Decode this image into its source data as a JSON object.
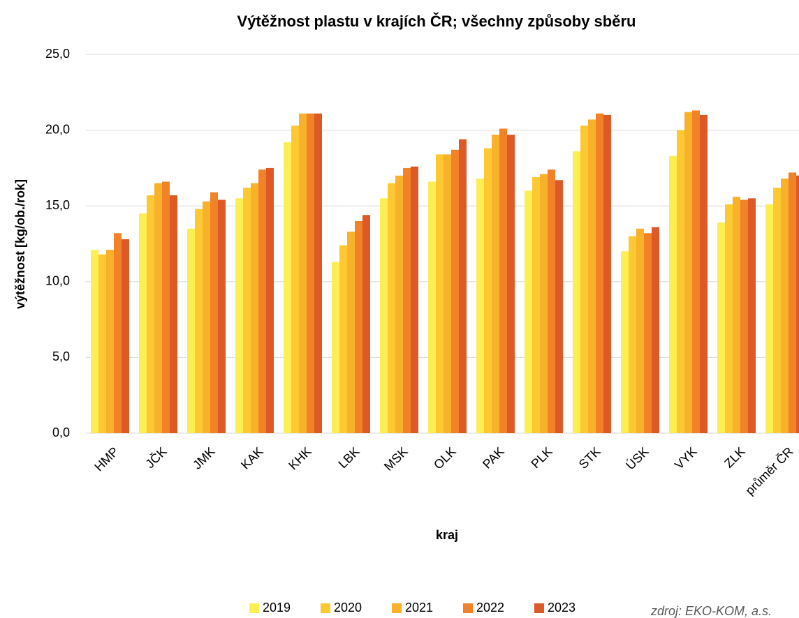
{
  "chart_data": {
    "type": "bar",
    "title": "Výtěžnost plastu v krajích ČR; všechny způsoby sběru",
    "x_label": "kraj",
    "y_label": "výtěžnost [kg/ob./rok]",
    "source": "zdroj: EKO-KOM, a.s.",
    "categories": [
      "HMP",
      "JČK",
      "JMK",
      "KAK",
      "KHK",
      "LBK",
      "MSK",
      "OLK",
      "PAK",
      "PLK",
      "STK",
      "ÚSK",
      "VYK",
      "ZLK",
      "průměr ČR"
    ],
    "series": [
      {
        "name": "2019",
        "color": "#fdee54",
        "values": [
          12.1,
          14.5,
          13.5,
          15.5,
          19.2,
          11.3,
          15.5,
          16.6,
          16.8,
          16.0,
          18.6,
          12.0,
          18.3,
          13.9,
          15.1
        ]
      },
      {
        "name": "2020",
        "color": "#fdc933",
        "values": [
          11.8,
          15.7,
          14.8,
          16.2,
          20.3,
          12.4,
          16.5,
          18.4,
          18.8,
          16.9,
          20.3,
          13.0,
          20.0,
          15.1,
          16.2
        ]
      },
      {
        "name": "2021",
        "color": "#f8b12b",
        "values": [
          12.1,
          16.5,
          15.3,
          16.5,
          21.1,
          13.3,
          17.0,
          18.4,
          19.7,
          17.1,
          20.7,
          13.5,
          21.2,
          15.6,
          16.8
        ]
      },
      {
        "name": "2022",
        "color": "#f28228",
        "values": [
          13.2,
          16.6,
          15.9,
          17.4,
          21.1,
          14.0,
          17.5,
          18.7,
          20.1,
          17.4,
          21.1,
          13.2,
          21.3,
          15.4,
          17.2
        ]
      },
      {
        "name": "2023",
        "color": "#dd5a27",
        "values": [
          12.8,
          15.7,
          15.4,
          17.5,
          21.1,
          14.4,
          17.6,
          19.4,
          19.7,
          16.7,
          21.0,
          13.6,
          21.0,
          15.5,
          17.0
        ]
      }
    ],
    "ylim": [
      0,
      25
    ],
    "yticks": [
      {
        "value": 0,
        "label": "0,0"
      },
      {
        "value": 5,
        "label": "5,0"
      },
      {
        "value": 10,
        "label": "10,0"
      },
      {
        "value": 15,
        "label": "15,0"
      },
      {
        "value": 20,
        "label": "20,0"
      },
      {
        "value": 25,
        "label": "25,0"
      }
    ],
    "grid": true,
    "legend": "bottom"
  }
}
